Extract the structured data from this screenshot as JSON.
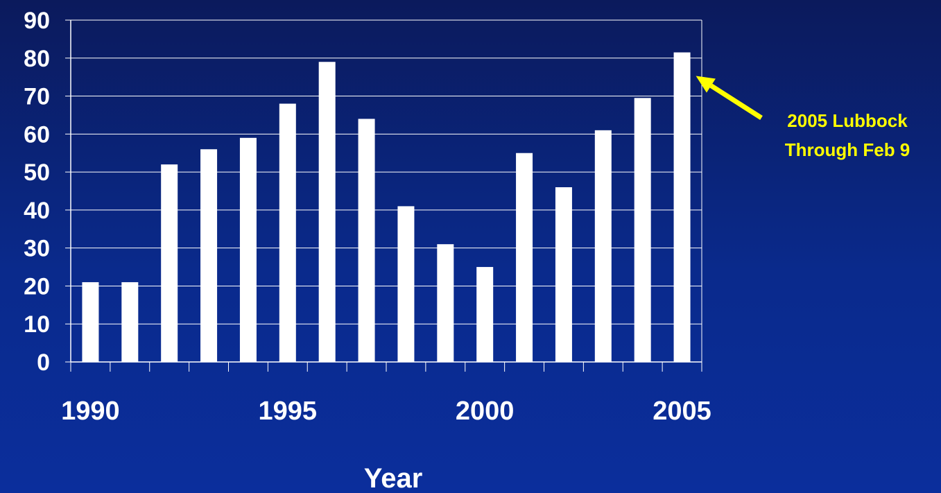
{
  "chart_data": {
    "type": "bar",
    "title": "",
    "xlabel": "Year",
    "ylabel": "",
    "categories": [
      "1990",
      "1991",
      "1992",
      "1993",
      "1994",
      "1995",
      "1996",
      "1997",
      "1998",
      "1999",
      "2000",
      "2001",
      "2002",
      "2003",
      "2004",
      "2005"
    ],
    "values": [
      21,
      21,
      52,
      56,
      59,
      68,
      79,
      64,
      41,
      31,
      25,
      55,
      46,
      61,
      69.5,
      81.5
    ],
    "x_tick_labels": [
      "1990",
      "1995",
      "2000",
      "2005"
    ],
    "y_tick_labels": [
      "0",
      "10",
      "20",
      "30",
      "40",
      "50",
      "60",
      "70",
      "80",
      "90"
    ],
    "ylim": [
      0,
      90
    ],
    "grid": true,
    "legend": "none",
    "bar_color": "#ffffff",
    "annotation": {
      "line1": "2005 Lubbock",
      "line2": "Through Feb 9",
      "target_category": "2005",
      "color": "#ffff00"
    }
  }
}
